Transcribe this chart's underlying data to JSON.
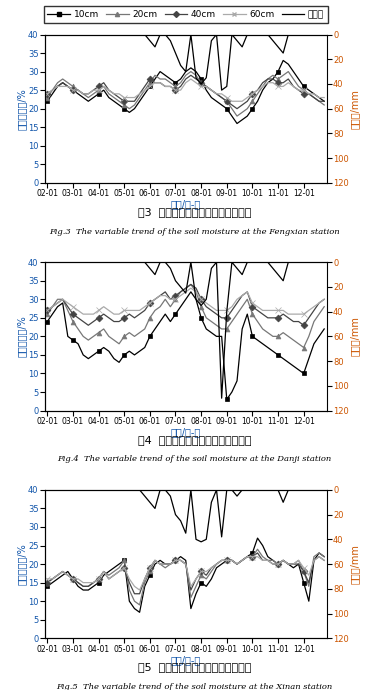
{
  "x_labels": [
    "02-01",
    "03-01",
    "04-01",
    "05-01",
    "06-01",
    "07-01",
    "08-01",
    "09-01",
    "10-01",
    "11-01",
    "12-01"
  ],
  "yticks_left": [
    0,
    5,
    10,
    15,
    20,
    25,
    30,
    35,
    40
  ],
  "yticks_right": [
    0,
    20,
    40,
    60,
    80,
    100,
    120
  ],
  "ylabel_left": "体积含水量/%",
  "ylabel_right": "降雨量/mm",
  "xlabel": "日期/月-日",
  "legend_labels": [
    "10cm",
    "20cm",
    "40cm",
    "60cm",
    "降雨量"
  ],
  "fig3_title_cn": "图3  丰县站土壤水分随时间变化曲线",
  "fig3_title_en": "Fig.3  The variable trend of the soil moisture at the Fengxian station",
  "fig4_title_cn": "图4  单集站土壤水分随时间变化曲线",
  "fig4_title_en": "Fig.4  The variable trend of the soil moisture at the Danji station",
  "fig5_title_cn": "图5  新安站土壤水分随时间变化曲线",
  "fig5_title_en": "Fig.5  The variable trend of the soil moisture at the Xinan station",
  "n_points": 55,
  "tick_positions": [
    0,
    5,
    10,
    15,
    20,
    25,
    30,
    35,
    40,
    45,
    50
  ],
  "fig3_rain": [
    0,
    0,
    0,
    0,
    0,
    0,
    0,
    0,
    0,
    0,
    0,
    0,
    0,
    0,
    0,
    0,
    0,
    0,
    0,
    0,
    5,
    10,
    0,
    0,
    5,
    15,
    25,
    30,
    0,
    35,
    40,
    35,
    5,
    0,
    45,
    42,
    0,
    5,
    10,
    0,
    0,
    0,
    0,
    0,
    5,
    10,
    15,
    0,
    0,
    0,
    0,
    0,
    0,
    0,
    0
  ],
  "fig3_10cm": [
    22,
    24,
    26,
    27,
    26,
    25,
    24,
    23,
    22,
    23,
    24,
    25,
    23,
    22,
    21,
    20,
    19,
    20,
    22,
    24,
    26,
    28,
    30,
    29,
    28,
    27,
    28,
    30,
    31,
    30,
    28,
    25,
    23,
    22,
    21,
    20,
    18,
    16,
    17,
    18,
    20,
    22,
    25,
    27,
    28,
    30,
    33,
    32,
    30,
    28,
    26,
    25,
    24,
    23,
    22
  ],
  "fig3_20cm": [
    23,
    25,
    27,
    28,
    27,
    26,
    25,
    24,
    23,
    24,
    25,
    26,
    24,
    23,
    22,
    21,
    20,
    21,
    23,
    25,
    27,
    29,
    28,
    28,
    27,
    26,
    27,
    29,
    30,
    29,
    27,
    26,
    25,
    24,
    23,
    22,
    20,
    18,
    19,
    20,
    22,
    24,
    26,
    28,
    29,
    28,
    29,
    30,
    28,
    26,
    25,
    24,
    23,
    22,
    21
  ],
  "fig3_40cm": [
    24,
    25,
    26,
    27,
    26,
    25,
    25,
    24,
    24,
    25,
    26,
    27,
    25,
    24,
    23,
    22,
    22,
    22,
    24,
    26,
    28,
    27,
    27,
    26,
    26,
    25,
    26,
    28,
    29,
    28,
    27,
    26,
    25,
    24,
    23,
    22,
    21,
    20,
    21,
    22,
    24,
    25,
    27,
    28,
    28,
    27,
    27,
    28,
    26,
    25,
    24,
    24,
    23,
    22,
    22
  ],
  "fig3_60cm": [
    24,
    25,
    26,
    26,
    26,
    25,
    25,
    24,
    24,
    25,
    25,
    26,
    25,
    24,
    24,
    23,
    23,
    23,
    24,
    25,
    26,
    27,
    27,
    26,
    26,
    25,
    25,
    27,
    28,
    27,
    26,
    26,
    25,
    24,
    24,
    23,
    22,
    22,
    22,
    23,
    24,
    25,
    26,
    27,
    27,
    26,
    26,
    27,
    26,
    25,
    25,
    24,
    24,
    23,
    23
  ],
  "fig4_rain": [
    0,
    0,
    0,
    0,
    0,
    0,
    0,
    0,
    0,
    0,
    0,
    0,
    0,
    0,
    0,
    0,
    0,
    0,
    0,
    0,
    5,
    10,
    0,
    0,
    5,
    15,
    20,
    25,
    0,
    30,
    35,
    30,
    5,
    0,
    110,
    40,
    0,
    5,
    10,
    0,
    0,
    0,
    0,
    0,
    5,
    10,
    15,
    0,
    0,
    0,
    0,
    0,
    0,
    0,
    0
  ],
  "fig4_10cm": [
    24,
    26,
    28,
    29,
    20,
    19,
    18,
    15,
    14,
    15,
    16,
    17,
    16,
    14,
    13,
    15,
    16,
    15,
    16,
    17,
    20,
    22,
    24,
    26,
    24,
    26,
    28,
    30,
    32,
    30,
    25,
    22,
    21,
    20,
    20,
    3,
    5,
    8,
    22,
    26,
    20,
    19,
    18,
    17,
    16,
    15,
    14,
    13,
    12,
    11,
    10,
    14,
    18,
    20,
    22
  ],
  "fig4_20cm": [
    26,
    28,
    30,
    30,
    27,
    24,
    22,
    20,
    19,
    20,
    21,
    22,
    20,
    19,
    18,
    20,
    21,
    20,
    21,
    22,
    25,
    27,
    28,
    30,
    28,
    30,
    32,
    33,
    34,
    32,
    28,
    25,
    24,
    23,
    22,
    22,
    24,
    26,
    28,
    30,
    26,
    24,
    22,
    21,
    20,
    20,
    21,
    20,
    19,
    18,
    17,
    20,
    24,
    26,
    28
  ],
  "fig4_40cm": [
    27,
    28,
    29,
    30,
    28,
    26,
    25,
    24,
    23,
    24,
    25,
    26,
    25,
    24,
    24,
    25,
    26,
    25,
    26,
    27,
    29,
    30,
    31,
    32,
    30,
    31,
    32,
    33,
    34,
    33,
    30,
    28,
    27,
    26,
    25,
    25,
    27,
    29,
    31,
    32,
    28,
    27,
    26,
    25,
    25,
    25,
    26,
    25,
    24,
    24,
    23,
    25,
    27,
    29,
    30
  ],
  "fig4_60cm": [
    27,
    28,
    29,
    30,
    29,
    28,
    27,
    26,
    26,
    26,
    27,
    28,
    27,
    26,
    26,
    27,
    27,
    27,
    27,
    28,
    29,
    30,
    31,
    31,
    30,
    30,
    31,
    32,
    33,
    32,
    30,
    29,
    28,
    27,
    27,
    27,
    28,
    30,
    31,
    32,
    29,
    28,
    27,
    27,
    27,
    27,
    27,
    26,
    26,
    26,
    26,
    27,
    28,
    29,
    30
  ],
  "fig5_rain": [
    0,
    0,
    0,
    0,
    0,
    0,
    0,
    0,
    0,
    0,
    0,
    0,
    0,
    0,
    0,
    0,
    0,
    0,
    0,
    5,
    10,
    15,
    0,
    0,
    5,
    20,
    25,
    35,
    0,
    40,
    42,
    40,
    10,
    0,
    38,
    0,
    0,
    5,
    0,
    0,
    0,
    0,
    0,
    0,
    0,
    0,
    10,
    0,
    0,
    0,
    0,
    0,
    0,
    0,
    0
  ],
  "fig5_10cm": [
    14,
    15,
    16,
    17,
    18,
    16,
    14,
    13,
    13,
    14,
    15,
    17,
    18,
    19,
    20,
    21,
    10,
    8,
    7,
    14,
    17,
    20,
    21,
    20,
    20,
    21,
    22,
    21,
    8,
    12,
    15,
    14,
    16,
    19,
    20,
    21,
    21,
    20,
    21,
    22,
    23,
    27,
    25,
    22,
    21,
    20,
    21,
    20,
    19,
    20,
    15,
    10,
    21,
    23,
    22
  ],
  "fig5_20cm": [
    15,
    16,
    17,
    18,
    17,
    16,
    15,
    14,
    14,
    15,
    16,
    18,
    17,
    18,
    19,
    21,
    13,
    10,
    9,
    15,
    18,
    21,
    20,
    19,
    20,
    21,
    21,
    20,
    11,
    14,
    17,
    16,
    18,
    20,
    21,
    21,
    21,
    20,
    21,
    22,
    22,
    24,
    22,
    21,
    21,
    20,
    21,
    20,
    20,
    21,
    18,
    14,
    22,
    23,
    22
  ],
  "fig5_40cm": [
    15,
    16,
    17,
    18,
    17,
    16,
    15,
    14,
    14,
    15,
    16,
    18,
    16,
    17,
    18,
    19,
    15,
    12,
    12,
    16,
    19,
    21,
    20,
    20,
    20,
    21,
    21,
    20,
    13,
    16,
    18,
    17,
    19,
    20,
    21,
    21,
    21,
    20,
    21,
    22,
    22,
    23,
    21,
    21,
    20,
    20,
    21,
    20,
    20,
    20,
    18,
    15,
    21,
    22,
    21
  ],
  "fig5_60cm": [
    16,
    16,
    17,
    18,
    17,
    16,
    16,
    15,
    15,
    15,
    16,
    18,
    16,
    17,
    18,
    19,
    16,
    14,
    13,
    16,
    19,
    21,
    20,
    20,
    20,
    21,
    21,
    20,
    14,
    16,
    18,
    18,
    19,
    20,
    21,
    21,
    21,
    20,
    21,
    22,
    22,
    22,
    21,
    21,
    20,
    20,
    21,
    20,
    20,
    21,
    19,
    17,
    21,
    22,
    21
  ]
}
